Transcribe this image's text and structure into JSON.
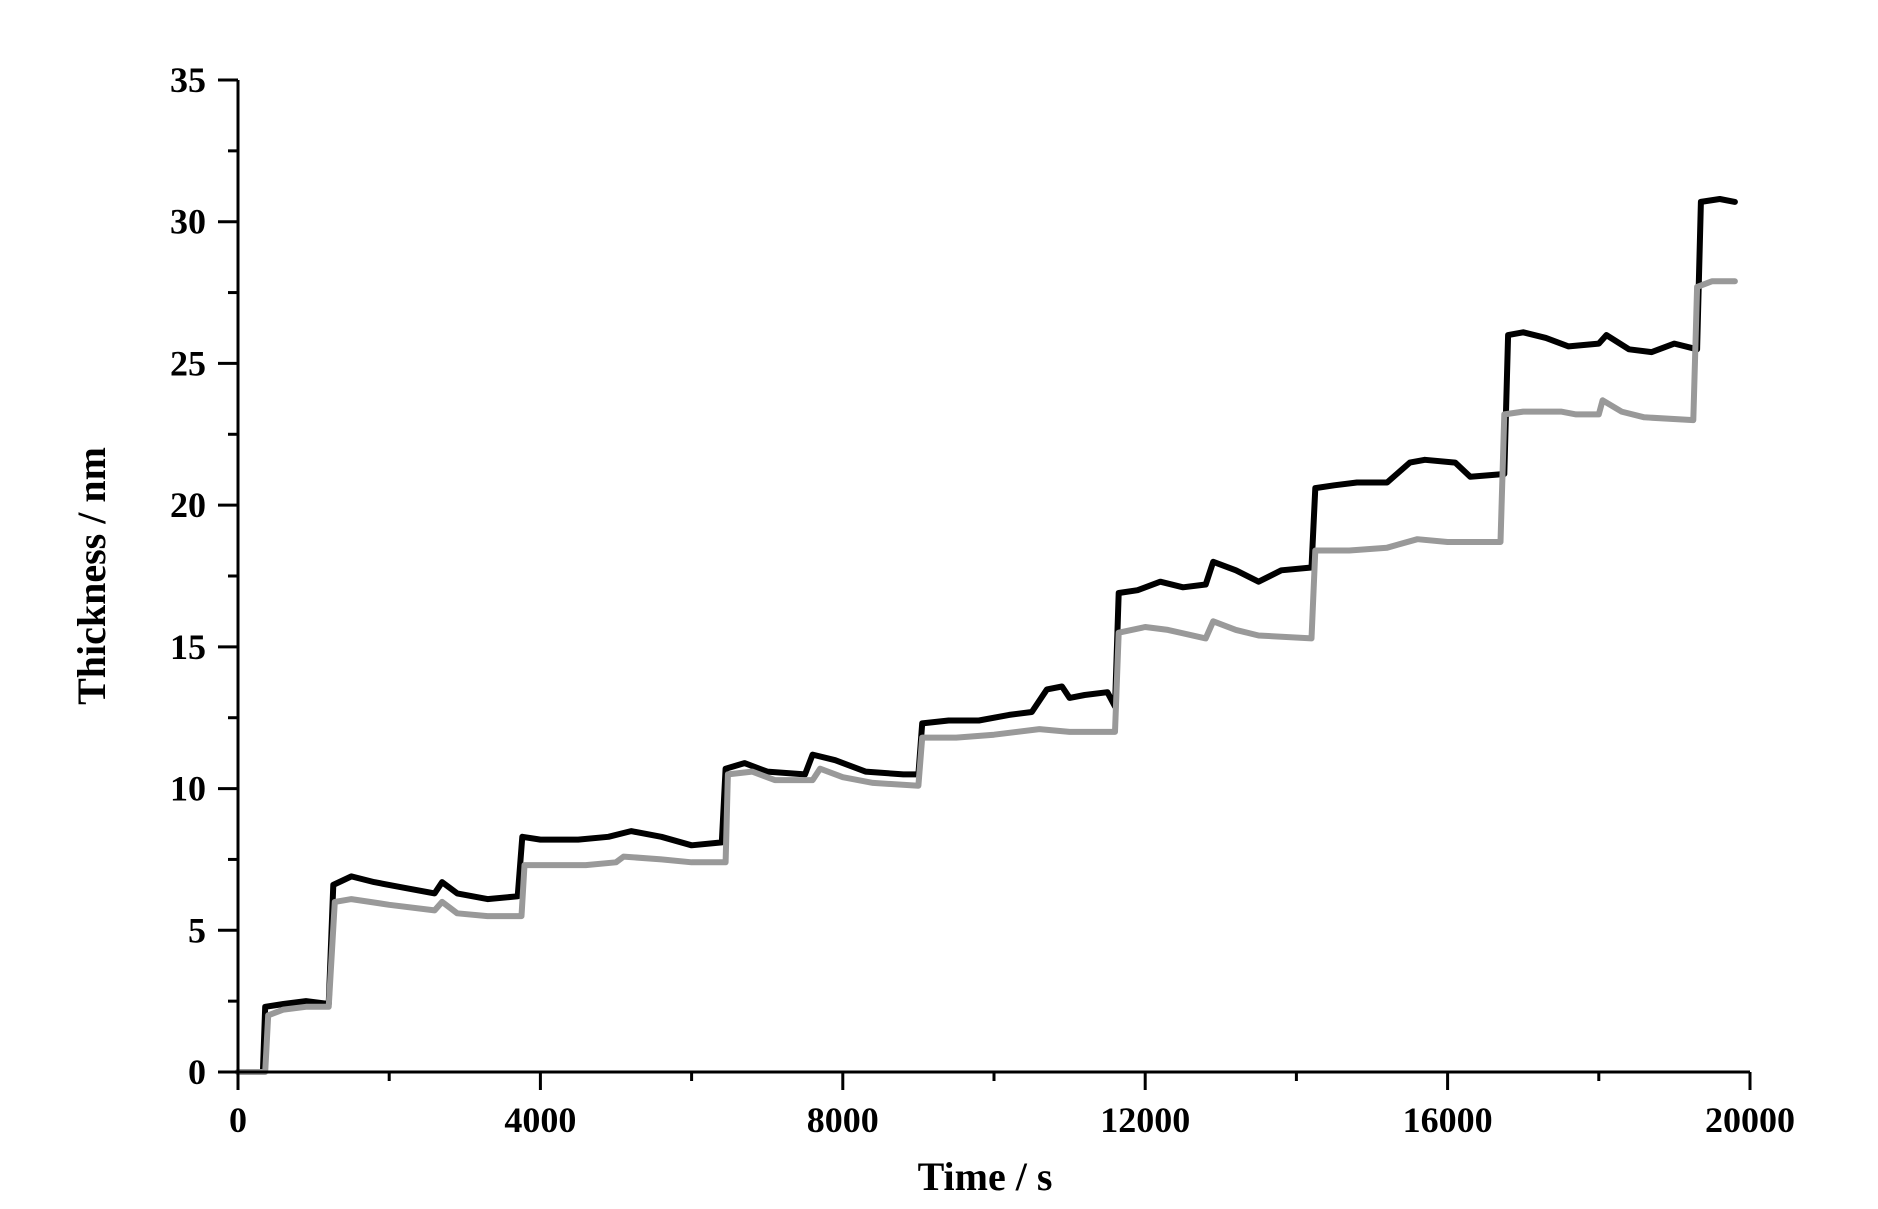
{
  "chart_data": {
    "type": "line",
    "xlabel": "Time / s",
    "ylabel": "Thickness / nm",
    "xlim": [
      0,
      20000
    ],
    "ylim": [
      0,
      35
    ],
    "x_ticks": [
      0,
      4000,
      8000,
      12000,
      16000,
      20000
    ],
    "x_tick_labels": [
      "0",
      "4000",
      "8000",
      "12000",
      "16000",
      "20000"
    ],
    "y_ticks": [
      0,
      5,
      10,
      15,
      20,
      25,
      30,
      35
    ],
    "y_tick_labels": [
      "0",
      "5",
      "10",
      "15",
      "20",
      "25",
      "30",
      "35"
    ],
    "grid": false,
    "legend": "none",
    "series": [
      {
        "color": "#000000",
        "points": [
          [
            0,
            0
          ],
          [
            330,
            0
          ],
          [
            360,
            2.3
          ],
          [
            600,
            2.4
          ],
          [
            900,
            2.5
          ],
          [
            1200,
            2.4
          ],
          [
            1260,
            6.6
          ],
          [
            1500,
            6.9
          ],
          [
            1800,
            6.7
          ],
          [
            2200,
            6.5
          ],
          [
            2600,
            6.3
          ],
          [
            2700,
            6.7
          ],
          [
            2900,
            6.3
          ],
          [
            3300,
            6.1
          ],
          [
            3700,
            6.2
          ],
          [
            3760,
            8.3
          ],
          [
            4000,
            8.2
          ],
          [
            4500,
            8.2
          ],
          [
            4900,
            8.3
          ],
          [
            5200,
            8.5
          ],
          [
            5600,
            8.3
          ],
          [
            6000,
            8.0
          ],
          [
            6400,
            8.1
          ],
          [
            6450,
            10.7
          ],
          [
            6700,
            10.9
          ],
          [
            7000,
            10.6
          ],
          [
            7500,
            10.5
          ],
          [
            7600,
            11.2
          ],
          [
            7900,
            11.0
          ],
          [
            8300,
            10.6
          ],
          [
            8800,
            10.5
          ],
          [
            9000,
            10.5
          ],
          [
            9050,
            12.3
          ],
          [
            9400,
            12.4
          ],
          [
            9800,
            12.4
          ],
          [
            10200,
            12.6
          ],
          [
            10500,
            12.7
          ],
          [
            10700,
            13.5
          ],
          [
            10900,
            13.6
          ],
          [
            11000,
            13.2
          ],
          [
            11200,
            13.3
          ],
          [
            11500,
            13.4
          ],
          [
            11600,
            12.9
          ],
          [
            11650,
            16.9
          ],
          [
            11900,
            17.0
          ],
          [
            12200,
            17.3
          ],
          [
            12500,
            17.1
          ],
          [
            12800,
            17.2
          ],
          [
            12900,
            18.0
          ],
          [
            13200,
            17.7
          ],
          [
            13500,
            17.3
          ],
          [
            13800,
            17.7
          ],
          [
            14200,
            17.8
          ],
          [
            14250,
            20.6
          ],
          [
            14500,
            20.7
          ],
          [
            14800,
            20.8
          ],
          [
            15200,
            20.8
          ],
          [
            15500,
            21.5
          ],
          [
            15700,
            21.6
          ],
          [
            16100,
            21.5
          ],
          [
            16300,
            21.0
          ],
          [
            16750,
            21.1
          ],
          [
            16800,
            26.0
          ],
          [
            17000,
            26.1
          ],
          [
            17300,
            25.9
          ],
          [
            17600,
            25.6
          ],
          [
            18000,
            25.7
          ],
          [
            18100,
            26.0
          ],
          [
            18400,
            25.5
          ],
          [
            18700,
            25.4
          ],
          [
            19000,
            25.7
          ],
          [
            19300,
            25.5
          ],
          [
            19350,
            30.7
          ],
          [
            19600,
            30.8
          ],
          [
            19800,
            30.7
          ]
        ]
      },
      {
        "color": "#999999",
        "points": [
          [
            0,
            0
          ],
          [
            360,
            0
          ],
          [
            400,
            2.0
          ],
          [
            600,
            2.2
          ],
          [
            900,
            2.3
          ],
          [
            1200,
            2.3
          ],
          [
            1280,
            6.0
          ],
          [
            1500,
            6.1
          ],
          [
            2000,
            5.9
          ],
          [
            2600,
            5.7
          ],
          [
            2700,
            6.0
          ],
          [
            2900,
            5.6
          ],
          [
            3300,
            5.5
          ],
          [
            3750,
            5.5
          ],
          [
            3790,
            7.3
          ],
          [
            4200,
            7.3
          ],
          [
            4600,
            7.3
          ],
          [
            5000,
            7.4
          ],
          [
            5100,
            7.6
          ],
          [
            5600,
            7.5
          ],
          [
            6000,
            7.4
          ],
          [
            6450,
            7.4
          ],
          [
            6480,
            10.5
          ],
          [
            6800,
            10.6
          ],
          [
            7100,
            10.3
          ],
          [
            7600,
            10.3
          ],
          [
            7700,
            10.7
          ],
          [
            8000,
            10.4
          ],
          [
            8400,
            10.2
          ],
          [
            9000,
            10.1
          ],
          [
            9050,
            11.8
          ],
          [
            9500,
            11.8
          ],
          [
            10000,
            11.9
          ],
          [
            10600,
            12.1
          ],
          [
            11000,
            12.0
          ],
          [
            11600,
            12.0
          ],
          [
            11650,
            15.5
          ],
          [
            12000,
            15.7
          ],
          [
            12300,
            15.6
          ],
          [
            12800,
            15.3
          ],
          [
            12900,
            15.9
          ],
          [
            13200,
            15.6
          ],
          [
            13500,
            15.4
          ],
          [
            14200,
            15.3
          ],
          [
            14250,
            18.4
          ],
          [
            14700,
            18.4
          ],
          [
            15200,
            18.5
          ],
          [
            15600,
            18.8
          ],
          [
            16000,
            18.7
          ],
          [
            16700,
            18.7
          ],
          [
            16750,
            23.2
          ],
          [
            17000,
            23.3
          ],
          [
            17500,
            23.3
          ],
          [
            17700,
            23.2
          ],
          [
            18000,
            23.2
          ],
          [
            18050,
            23.7
          ],
          [
            18300,
            23.3
          ],
          [
            18600,
            23.1
          ],
          [
            19250,
            23.0
          ],
          [
            19300,
            27.7
          ],
          [
            19500,
            27.9
          ],
          [
            19800,
            27.9
          ]
        ]
      }
    ]
  }
}
